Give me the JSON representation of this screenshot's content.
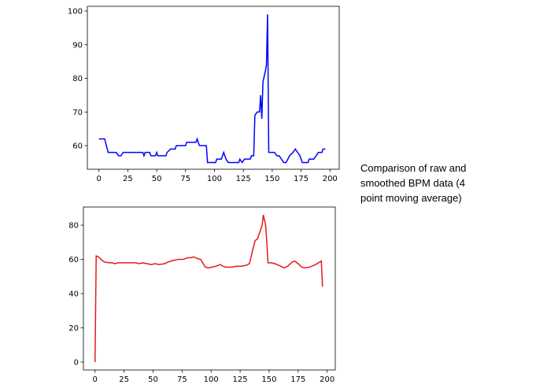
{
  "chart_data": [
    {
      "type": "line",
      "x": [
        0,
        5,
        8,
        15,
        17,
        19,
        21,
        38,
        39,
        40,
        44,
        45,
        49,
        50,
        51,
        58,
        59,
        62,
        66,
        67,
        75,
        76,
        84,
        85,
        87,
        93,
        94,
        101,
        102,
        106,
        108,
        110,
        112,
        121,
        122,
        124,
        126,
        131,
        132,
        134,
        135,
        137,
        139,
        140,
        141,
        142,
        144,
        145,
        146,
        147,
        152,
        154,
        156,
        158,
        160,
        162,
        165,
        168,
        170,
        172,
        174,
        176,
        181,
        182,
        186,
        188,
        190,
        193,
        194,
        196
      ],
      "series": [
        {
          "color": "#0000ff",
          "values": [
            62,
            62,
            58,
            58,
            57,
            57,
            58,
            58,
            57,
            58,
            58,
            57,
            57,
            58,
            57,
            57,
            58,
            59,
            59,
            60,
            60,
            61,
            61,
            62,
            60,
            60,
            55,
            55,
            56,
            56,
            58,
            56,
            55,
            55,
            56,
            55,
            56,
            56,
            57,
            57,
            69,
            70,
            70,
            75,
            68,
            79,
            82,
            84,
            99,
            58,
            58,
            57,
            57,
            56,
            55,
            55,
            57,
            58,
            59,
            58,
            57,
            55,
            55,
            56,
            56,
            57,
            58,
            58,
            59,
            59
          ]
        }
      ],
      "xlim": [
        -10,
        208
      ],
      "ylim": [
        53,
        101.4
      ],
      "xticks": [
        0,
        25,
        50,
        75,
        100,
        125,
        150,
        175,
        200
      ],
      "yticks": [
        60,
        70,
        80,
        90,
        100
      ]
    },
    {
      "type": "line",
      "x": [
        0,
        1,
        3,
        5,
        8,
        12,
        15,
        17,
        20,
        25,
        35,
        38,
        41,
        45,
        48,
        52,
        55,
        60,
        63,
        68,
        72,
        76,
        80,
        83,
        85,
        88,
        91,
        95,
        98,
        104,
        108,
        110,
        113,
        118,
        122,
        126,
        130,
        133,
        136,
        138,
        140,
        142,
        144,
        145,
        147,
        148,
        149,
        152,
        155,
        160,
        163,
        166,
        170,
        172,
        175,
        178,
        181,
        185,
        190,
        195,
        196
      ],
      "series": [
        {
          "color": "#e41a1c",
          "values": [
            0,
            62,
            61.5,
            60,
            58.5,
            58,
            58,
            57.5,
            58,
            58,
            58,
            57.5,
            58,
            57.5,
            57,
            57.5,
            57,
            57.5,
            58.5,
            59.5,
            60,
            60,
            61,
            61,
            61.5,
            60.5,
            60,
            55.5,
            55,
            56,
            57,
            56,
            55.5,
            55.5,
            56,
            56,
            56.5,
            57.5,
            66,
            71,
            72,
            76,
            80,
            86,
            80,
            70,
            58,
            58,
            57.5,
            56,
            55,
            56,
            58.5,
            59,
            57.5,
            55.5,
            55,
            55.5,
            57,
            59,
            44
          ]
        }
      ],
      "xlim": [
        -10,
        207
      ],
      "ylim": [
        -4.6,
        90.6
      ],
      "xticks": [
        0,
        25,
        50,
        75,
        100,
        125,
        150,
        175,
        200
      ],
      "yticks": [
        0,
        20,
        40,
        60,
        80
      ]
    }
  ],
  "caption": "Comparison of raw and smoothed BPM data (4 point moving average)"
}
